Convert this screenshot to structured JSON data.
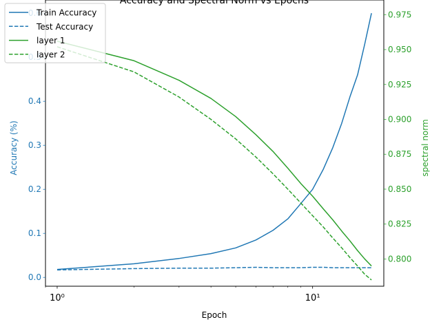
{
  "chart_data": {
    "type": "line",
    "title": "Accuracy and Spectral Norm vs Epochs",
    "xlabel": "Epoch",
    "x_scale": "log",
    "xlim": [
      0.9,
      19
    ],
    "x_ticks": [
      1,
      10
    ],
    "x_tick_labels": [
      "10⁰",
      "10¹"
    ],
    "y_left": {
      "label": "Accuracy (%)",
      "color": "#1f77b4",
      "lim": [
        -0.02,
        0.63
      ],
      "ticks": [
        0.0,
        0.1,
        0.2,
        0.3,
        0.4,
        0.5,
        0.6
      ],
      "tick_labels": [
        "0.0",
        "0.1",
        "0.2",
        "0.3",
        "0.4",
        "0.5",
        "0.6"
      ]
    },
    "y_right": {
      "label": "spectral norm",
      "color": "#2ca02c",
      "lim": [
        0.7805,
        0.9855
      ],
      "ticks": [
        0.8,
        0.825,
        0.85,
        0.875,
        0.9,
        0.925,
        0.95,
        0.975
      ],
      "tick_labels": [
        "0.800",
        "0.825",
        "0.850",
        "0.875",
        "0.900",
        "0.925",
        "0.950",
        "0.975"
      ]
    },
    "x": [
      1,
      2,
      3,
      4,
      5,
      6,
      7,
      8,
      9,
      10,
      11,
      12,
      13,
      14,
      15,
      16,
      17
    ],
    "series": [
      {
        "name": "Train Accuracy",
        "axis": "left",
        "color": "#1f77b4",
        "dash": "solid",
        "values": [
          0.018,
          0.031,
          0.043,
          0.054,
          0.067,
          0.085,
          0.107,
          0.133,
          0.168,
          0.2,
          0.245,
          0.295,
          0.35,
          0.41,
          0.46,
          0.53,
          0.6
        ]
      },
      {
        "name": "Test Accuracy",
        "axis": "left",
        "color": "#1f77b4",
        "dash": "dashed",
        "values": [
          0.017,
          0.02,
          0.021,
          0.021,
          0.022,
          0.023,
          0.022,
          0.022,
          0.022,
          0.023,
          0.023,
          0.022,
          0.022,
          0.022,
          0.022,
          0.022,
          0.022
        ]
      },
      {
        "name": "layer 1",
        "axis": "right",
        "color": "#2ca02c",
        "dash": "solid",
        "values": [
          0.956,
          0.942,
          0.928,
          0.915,
          0.902,
          0.889,
          0.877,
          0.865,
          0.854,
          0.845,
          0.836,
          0.828,
          0.82,
          0.813,
          0.806,
          0.8,
          0.795
        ]
      },
      {
        "name": "layer 2",
        "axis": "right",
        "color": "#2ca02c",
        "dash": "dashed",
        "values": [
          0.952,
          0.934,
          0.916,
          0.9,
          0.886,
          0.873,
          0.861,
          0.85,
          0.84,
          0.831,
          0.823,
          0.815,
          0.808,
          0.801,
          0.795,
          0.789,
          0.785
        ]
      }
    ],
    "legend_position": "top-left",
    "grid": false
  }
}
